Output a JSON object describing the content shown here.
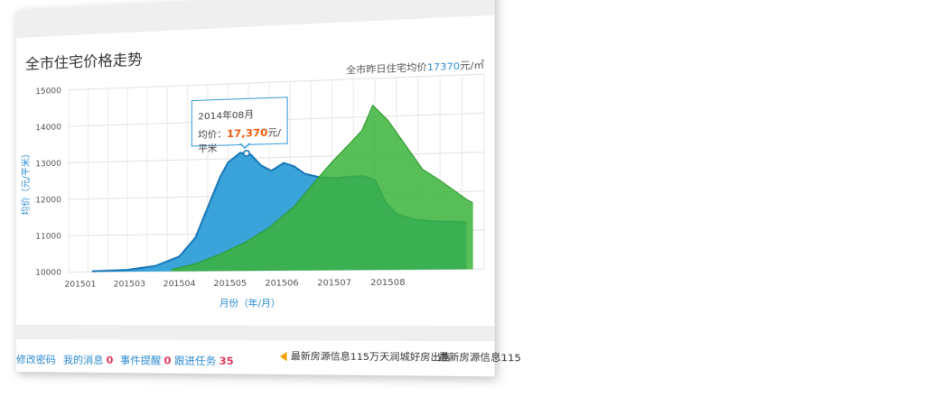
{
  "header": {
    "title": "全市住宅价格走势"
  },
  "average": {
    "prefix": "全市昨日住宅均价",
    "value": "17370",
    "unit": "元/㎡"
  },
  "tooltip": {
    "month": "2014年08月",
    "label": "均价：",
    "price": "17,370",
    "unit": "元/平米"
  },
  "footer": {
    "links": [
      {
        "label": "修改密码",
        "count": ""
      },
      {
        "label": "我的消息",
        "count": "0"
      },
      {
        "label": "事件提醒",
        "count": "0"
      },
      {
        "label": "跟进任务",
        "count": "35"
      }
    ],
    "notice1": "最新房源信息115万天润城好房出售",
    "notice2": "最新房源信息115"
  },
  "colors": {
    "blue_fill": "#2f9fd8",
    "blue_line": "#1a78b8",
    "green_fill": "#3bb33b",
    "accent": "#2a8ad0"
  },
  "chart_data": {
    "type": "area",
    "title": "",
    "xlabel": "月份（年/月）",
    "ylabel": "均价（元/平米）",
    "ylim": [
      10000,
      15000
    ],
    "yticks": [
      10000,
      11000,
      12000,
      13000,
      14000,
      15000
    ],
    "x_tick_labels": [
      "201501",
      "201503",
      "201504",
      "201505",
      "201506",
      "201507",
      "201508"
    ],
    "grid": true,
    "series": [
      {
        "color": "#2f9fd8",
        "points": [
          [
            0.6,
            10020
          ],
          [
            1.5,
            10050
          ],
          [
            2.2,
            10150
          ],
          [
            2.8,
            10400
          ],
          [
            3.2,
            10900
          ],
          [
            3.5,
            11700
          ],
          [
            3.8,
            12500
          ],
          [
            4.0,
            12900
          ],
          [
            4.3,
            13150
          ],
          [
            4.55,
            13100
          ],
          [
            4.8,
            12800
          ],
          [
            5.05,
            12650
          ],
          [
            5.35,
            12850
          ],
          [
            5.6,
            12750
          ],
          [
            5.85,
            12550
          ],
          [
            6.2,
            12450
          ],
          [
            6.6,
            12420
          ],
          [
            6.95,
            12450
          ],
          [
            7.25,
            12450
          ],
          [
            7.5,
            12350
          ],
          [
            7.75,
            11750
          ],
          [
            8.0,
            11450
          ],
          [
            8.4,
            11300
          ],
          [
            8.8,
            11250
          ],
          [
            9.2,
            11230
          ],
          [
            9.6,
            11210
          ]
        ]
      },
      {
        "color": "#3bb33b",
        "points": [
          [
            2.6,
            10050
          ],
          [
            3.2,
            10200
          ],
          [
            3.8,
            10450
          ],
          [
            4.4,
            10750
          ],
          [
            5.0,
            11150
          ],
          [
            5.6,
            11700
          ],
          [
            6.1,
            12350
          ],
          [
            6.5,
            12850
          ],
          [
            6.9,
            13300
          ],
          [
            7.2,
            13650
          ],
          [
            7.45,
            14300
          ],
          [
            7.8,
            13900
          ],
          [
            8.2,
            13250
          ],
          [
            8.6,
            12600
          ],
          [
            9.0,
            12300
          ],
          [
            9.3,
            12050
          ],
          [
            9.6,
            11800
          ],
          [
            9.75,
            11700
          ]
        ]
      }
    ]
  }
}
